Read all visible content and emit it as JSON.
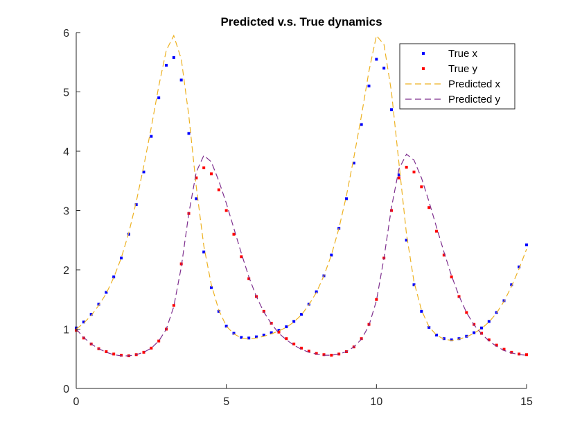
{
  "chart_data": {
    "type": "line",
    "title": "Predicted v.s. True dynamics",
    "xlabel": "",
    "ylabel": "",
    "xlim": [
      0,
      15
    ],
    "ylim": [
      0,
      6
    ],
    "xticks": [
      0,
      5,
      10,
      15
    ],
    "yticks": [
      0,
      1,
      2,
      3,
      4,
      5,
      6
    ],
    "grid": false,
    "legend_position": "top-right",
    "legend_entries": [
      "True x",
      "True y",
      "Predicted x",
      "Predicted y"
    ],
    "series": [
      {
        "name": "True x",
        "style": "markers",
        "color": "#0000ff",
        "x": [
          0,
          0.25,
          0.5,
          0.75,
          1,
          1.25,
          1.5,
          1.75,
          2,
          2.25,
          2.5,
          2.75,
          3,
          3.25,
          3.5,
          3.75,
          4,
          4.25,
          4.5,
          4.75,
          5,
          5.25,
          5.5,
          5.75,
          6,
          6.25,
          6.5,
          6.75,
          7,
          7.25,
          7.5,
          7.75,
          8,
          8.25,
          8.5,
          8.75,
          9,
          9.25,
          9.5,
          9.75,
          10,
          10.25,
          10.5,
          10.75,
          11,
          11.25,
          11.5,
          11.75,
          12,
          12.25,
          12.5,
          12.75,
          13,
          13.25,
          13.5,
          13.75,
          14,
          14.25,
          14.5,
          14.75,
          15
        ],
        "y": [
          1.02,
          1.12,
          1.25,
          1.42,
          1.62,
          1.88,
          2.2,
          2.6,
          3.1,
          3.65,
          4.25,
          4.9,
          5.45,
          5.58,
          5.2,
          4.3,
          3.2,
          2.3,
          1.7,
          1.3,
          1.05,
          0.93,
          0.86,
          0.85,
          0.87,
          0.9,
          0.94,
          0.98,
          1.04,
          1.13,
          1.25,
          1.42,
          1.63,
          1.9,
          2.25,
          2.7,
          3.2,
          3.8,
          4.45,
          5.1,
          5.55,
          5.4,
          4.7,
          3.6,
          2.5,
          1.75,
          1.3,
          1.03,
          0.9,
          0.84,
          0.82,
          0.84,
          0.88,
          0.94,
          1.02,
          1.13,
          1.28,
          1.48,
          1.75,
          2.05,
          2.42
        ]
      },
      {
        "name": "True y",
        "style": "markers",
        "color": "#ff0000",
        "x": [
          0,
          0.25,
          0.5,
          0.75,
          1,
          1.25,
          1.5,
          1.75,
          2,
          2.25,
          2.5,
          2.75,
          3,
          3.25,
          3.5,
          3.75,
          4,
          4.25,
          4.5,
          4.75,
          5,
          5.25,
          5.5,
          5.75,
          6,
          6.25,
          6.5,
          6.75,
          7,
          7.25,
          7.5,
          7.75,
          8,
          8.25,
          8.5,
          8.75,
          9,
          9.25,
          9.5,
          9.75,
          10,
          10.25,
          10.5,
          10.75,
          11,
          11.25,
          11.5,
          11.75,
          12,
          12.25,
          12.5,
          12.75,
          13,
          13.25,
          13.5,
          13.75,
          14,
          14.25,
          14.5,
          14.75,
          15
        ],
        "y": [
          0.98,
          0.85,
          0.75,
          0.67,
          0.62,
          0.58,
          0.56,
          0.55,
          0.57,
          0.61,
          0.68,
          0.8,
          1.0,
          1.4,
          2.1,
          2.95,
          3.55,
          3.72,
          3.62,
          3.35,
          3.0,
          2.6,
          2.22,
          1.85,
          1.55,
          1.3,
          1.1,
          0.95,
          0.84,
          0.75,
          0.68,
          0.63,
          0.59,
          0.57,
          0.56,
          0.58,
          0.62,
          0.7,
          0.84,
          1.08,
          1.5,
          2.2,
          3.0,
          3.55,
          3.73,
          3.65,
          3.4,
          3.05,
          2.65,
          2.25,
          1.88,
          1.55,
          1.28,
          1.08,
          0.93,
          0.82,
          0.73,
          0.66,
          0.61,
          0.58,
          0.57
        ]
      },
      {
        "name": "Predicted x",
        "style": "dashed",
        "color": "#edb120",
        "x": [
          0,
          0.25,
          0.5,
          0.75,
          1,
          1.25,
          1.5,
          1.75,
          2,
          2.25,
          2.5,
          2.75,
          3,
          3.25,
          3.5,
          3.75,
          4,
          4.25,
          4.5,
          4.75,
          5,
          5.25,
          5.5,
          5.75,
          6,
          6.25,
          6.5,
          6.75,
          7,
          7.25,
          7.5,
          7.75,
          8,
          8.25,
          8.5,
          8.75,
          9,
          9.25,
          9.5,
          9.75,
          10,
          10.25,
          10.5,
          10.75,
          11,
          11.25,
          11.5,
          11.75,
          12,
          12.25,
          12.5,
          12.75,
          13,
          13.25,
          13.5,
          13.75,
          14,
          14.25,
          14.5,
          14.75,
          15
        ],
        "y": [
          1.0,
          1.1,
          1.23,
          1.4,
          1.6,
          1.87,
          2.2,
          2.62,
          3.15,
          3.75,
          4.4,
          5.1,
          5.7,
          5.95,
          5.55,
          4.6,
          3.4,
          2.4,
          1.75,
          1.32,
          1.05,
          0.92,
          0.85,
          0.83,
          0.85,
          0.88,
          0.92,
          0.97,
          1.03,
          1.12,
          1.24,
          1.41,
          1.62,
          1.9,
          2.25,
          2.7,
          3.25,
          3.9,
          4.6,
          5.35,
          5.95,
          5.8,
          5.0,
          3.8,
          2.6,
          1.8,
          1.32,
          1.04,
          0.9,
          0.83,
          0.81,
          0.83,
          0.87,
          0.93,
          1.01,
          1.12,
          1.27,
          1.47,
          1.72,
          2.02,
          2.35
        ]
      },
      {
        "name": "Predicted y",
        "style": "dashed",
        "color": "#7e2f8e",
        "x": [
          0,
          0.25,
          0.5,
          0.75,
          1,
          1.25,
          1.5,
          1.75,
          2,
          2.25,
          2.5,
          2.75,
          3,
          3.25,
          3.5,
          3.75,
          4,
          4.25,
          4.5,
          4.75,
          5,
          5.25,
          5.5,
          5.75,
          6,
          6.25,
          6.5,
          6.75,
          7,
          7.25,
          7.5,
          7.75,
          8,
          8.25,
          8.5,
          8.75,
          9,
          9.25,
          9.5,
          9.75,
          10,
          10.25,
          10.5,
          10.75,
          11,
          11.25,
          11.5,
          11.75,
          12,
          12.25,
          12.5,
          12.75,
          13,
          13.25,
          13.5,
          13.75,
          14,
          14.25,
          14.5,
          14.75,
          15
        ],
        "y": [
          1.0,
          0.86,
          0.75,
          0.67,
          0.61,
          0.57,
          0.55,
          0.55,
          0.57,
          0.61,
          0.68,
          0.8,
          1.0,
          1.38,
          2.05,
          2.95,
          3.65,
          3.93,
          3.82,
          3.5,
          3.12,
          2.7,
          2.28,
          1.88,
          1.55,
          1.29,
          1.09,
          0.93,
          0.82,
          0.73,
          0.66,
          0.61,
          0.58,
          0.56,
          0.56,
          0.58,
          0.62,
          0.7,
          0.83,
          1.06,
          1.48,
          2.2,
          3.05,
          3.7,
          3.95,
          3.85,
          3.55,
          3.15,
          2.72,
          2.3,
          1.9,
          1.56,
          1.28,
          1.07,
          0.92,
          0.8,
          0.71,
          0.64,
          0.6,
          0.57,
          0.56
        ]
      }
    ]
  }
}
